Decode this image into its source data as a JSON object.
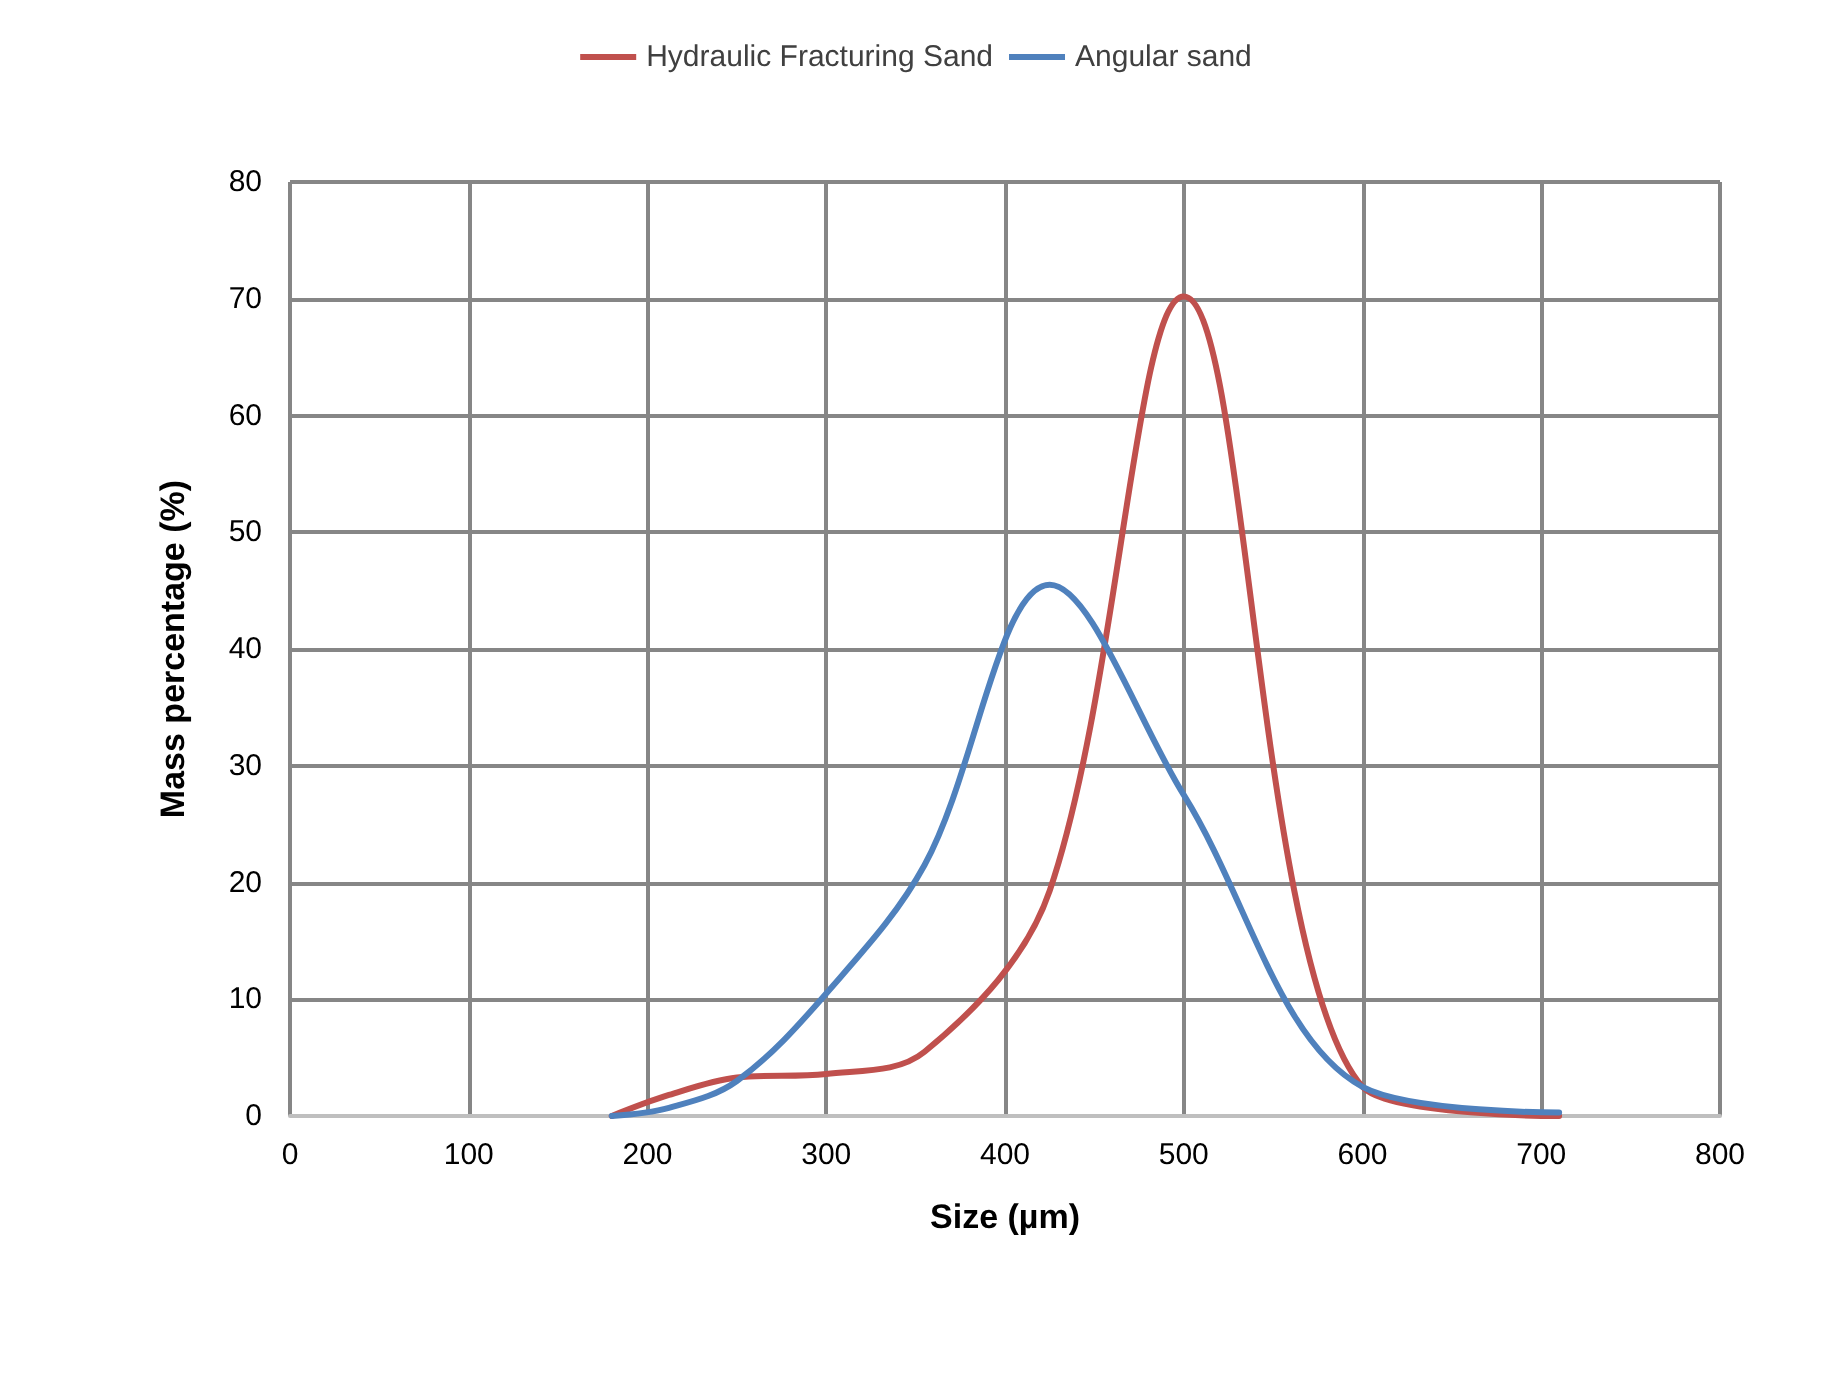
{
  "chart_data": {
    "type": "line",
    "xlabel": "Size (µm)",
    "ylabel": "Mass percentage (%)",
    "x": [
      180,
      212,
      250,
      300,
      355,
      425,
      500,
      600,
      710
    ],
    "series": [
      {
        "name": "Hydraulic Fracturing Sand",
        "color": "#c0504d",
        "values": [
          0,
          1.8,
          3.3,
          3.6,
          5.5,
          19.3,
          70.2,
          2.5,
          0
        ]
      },
      {
        "name": "Angular sand",
        "color": "#4f81bd",
        "values": [
          0,
          0.7,
          3,
          10.5,
          21.5,
          45.5,
          27.5,
          2.5,
          0.3
        ]
      }
    ],
    "xlim": [
      0,
      800
    ],
    "xticks": [
      0,
      100,
      200,
      300,
      400,
      500,
      600,
      700,
      800
    ],
    "ylim": [
      0,
      80
    ],
    "yticks": [
      0,
      10,
      20,
      30,
      40,
      50,
      60,
      70,
      80
    ],
    "grid": true,
    "legend": "top",
    "marker": "none",
    "line_style": "solid"
  }
}
